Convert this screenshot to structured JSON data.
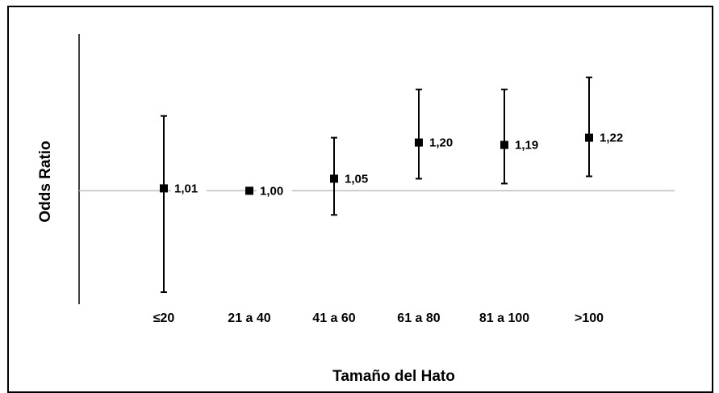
{
  "chart_data": {
    "type": "scatter",
    "xlabel": "Tamaño del Hato",
    "ylabel": "Odds Ratio",
    "categories": [
      "≤20",
      "21 a 40",
      "41 a 60",
      "61 a 80",
      "81 a 100",
      ">100"
    ],
    "series": [
      {
        "values": [
          1.01,
          1.0,
          1.05,
          1.2,
          1.19,
          1.22
        ],
        "labels": [
          "1,01",
          "1,00",
          "1,05",
          "1,20",
          "1,19",
          "1,22"
        ],
        "ci_lower": [
          0.58,
          1.0,
          0.9,
          1.05,
          1.03,
          1.06
        ],
        "ci_upper": [
          1.31,
          1.0,
          1.22,
          1.42,
          1.42,
          1.47
        ]
      }
    ],
    "reference_line": 1.0,
    "ylim": [
      0.53,
      1.65
    ],
    "grid": false,
    "legend": "none"
  },
  "colors": {
    "marker": "#000000",
    "reference_line": "#bdbdbd",
    "axis": "#000000"
  }
}
